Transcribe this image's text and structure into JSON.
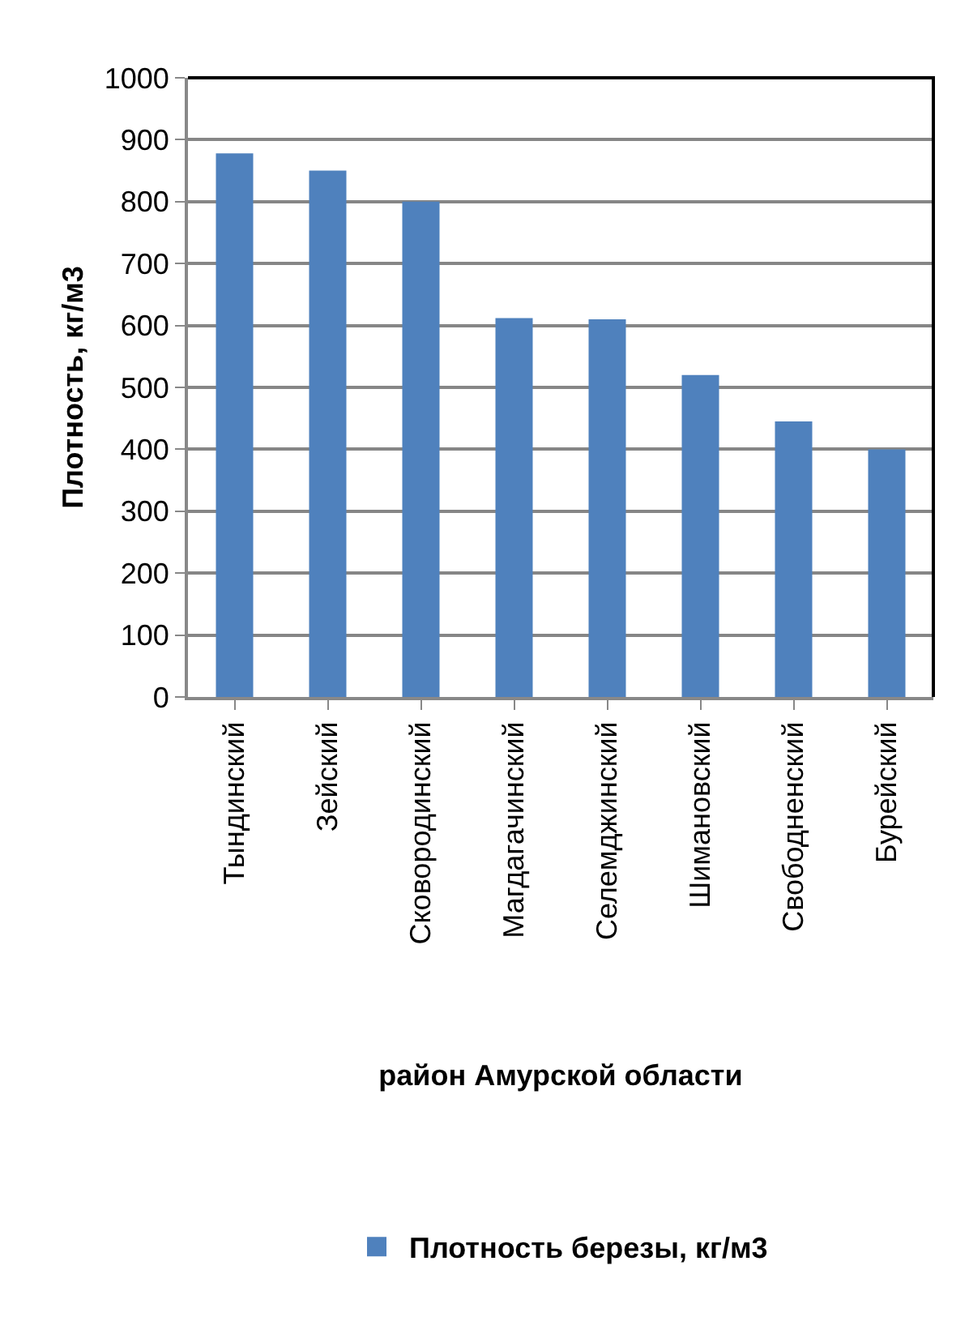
{
  "chart_data": {
    "type": "bar",
    "xlabel": "район Амурской области",
    "ylabel": "Плотность, кг/м3",
    "categories": [
      "Тындинский",
      "Зейский",
      "Сковородинский",
      "Магдагачинский",
      "Селемджинский",
      "Шимановский",
      "Свободненский",
      "Бурейский"
    ],
    "series": [
      {
        "name": "Плотность березы, кг/м3",
        "color": "#4f81bd",
        "values": [
          878,
          850,
          800,
          612,
          610,
          520,
          445,
          400
        ]
      }
    ],
    "ylim": [
      0,
      1000
    ],
    "yticks": [
      0,
      100,
      200,
      300,
      400,
      500,
      600,
      700,
      800,
      900,
      1000
    ],
    "grid": "y",
    "legend": "bottom"
  }
}
